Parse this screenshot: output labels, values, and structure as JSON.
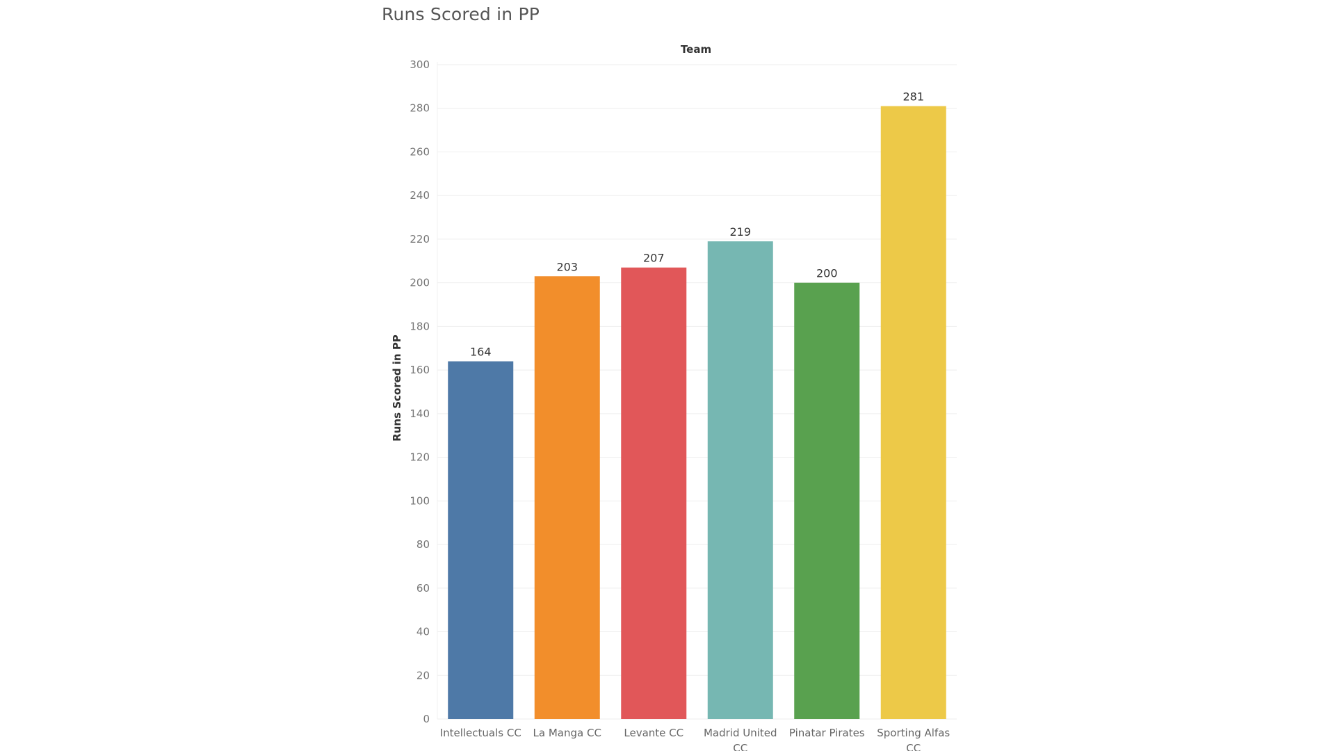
{
  "chart_data": {
    "type": "bar",
    "title": "Runs Scored in PP",
    "header": "Team",
    "xlabel": "",
    "ylabel": "Runs Scored in PP",
    "ylim": [
      0,
      300
    ],
    "yticks": [
      0,
      20,
      40,
      60,
      80,
      100,
      120,
      140,
      160,
      180,
      200,
      220,
      240,
      260,
      280,
      300
    ],
    "categories": [
      "Intellectuals CC",
      "La Manga CC",
      "Levante CC",
      "Madrid United CC",
      "Pinatar Pirates",
      "Sporting Alfas CC"
    ],
    "category_lines": [
      [
        "Intellectuals CC"
      ],
      [
        "La Manga CC"
      ],
      [
        "Levante CC"
      ],
      [
        "Madrid United",
        "CC"
      ],
      [
        "Pinatar Pirates"
      ],
      [
        "Sporting Alfas",
        "CC"
      ]
    ],
    "values": [
      164,
      203,
      207,
      219,
      200,
      281
    ],
    "colors": [
      "#4e79a7",
      "#f28e2b",
      "#e15759",
      "#76b7b2",
      "#59a14f",
      "#edc948"
    ],
    "grid": true,
    "legend": "none"
  }
}
